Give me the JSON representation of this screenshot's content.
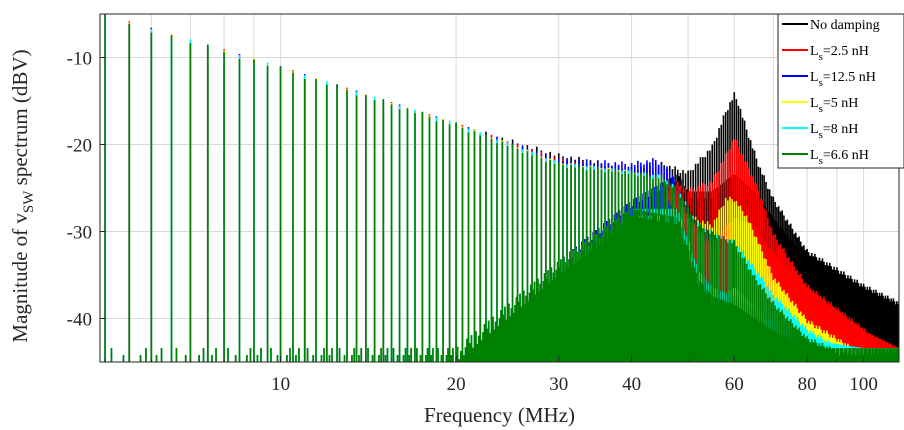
{
  "chart_data": {
    "type": "line",
    "title": "",
    "xlabel": "Frequency (MHz)",
    "ylabel": {
      "prefix": "Magnitude of v",
      "subscript": "SW",
      "suffix": " spectrum (dBV)"
    },
    "xscale": "log",
    "xlim": [
      4.9,
      115
    ],
    "ylim": [
      -45,
      -5
    ],
    "xticks": [
      10,
      20,
      30,
      40,
      60,
      80,
      100
    ],
    "xtick_labels": [
      "10",
      "20",
      "30",
      "40",
      "60",
      "80",
      "100"
    ],
    "yticks": [
      -40,
      -30,
      -20,
      -10
    ],
    "ytick_labels": [
      "-40",
      "-30",
      "-20",
      "-10"
    ],
    "grid": true,
    "legend_position": "top-right",
    "fundamental_mhz": 0.5,
    "series": [
      {
        "name": "No damping",
        "label": "No damping",
        "color": "#000000",
        "envelope_x": [
          5,
          10,
          20,
          30,
          40,
          45,
          50,
          55,
          58,
          60,
          61,
          63,
          66,
          70,
          80,
          100,
          115
        ],
        "envelope_y": [
          -5,
          -11,
          -17.5,
          -21,
          -22.5,
          -22,
          -23,
          -20,
          -16,
          -14,
          -15,
          -18,
          -22,
          -26,
          -32,
          -36,
          -38
        ],
        "floor_x": [
          5,
          10,
          20,
          30,
          40,
          48,
          50,
          55,
          60,
          65,
          70,
          80,
          100,
          115
        ],
        "floor_y": [
          -45,
          -45,
          -45,
          -35,
          -28,
          -25,
          -27,
          -27,
          -25,
          -27,
          -30,
          -35,
          -39,
          -42
        ]
      },
      {
        "name": "Ls=2.5 nH",
        "label_main": "L",
        "label_sub": "s",
        "label_tail": "=2.5 nH",
        "color": "#ff0000",
        "envelope_x": [
          5,
          10,
          20,
          30,
          40,
          45,
          50,
          55,
          58,
          60,
          61,
          63,
          66,
          70,
          80,
          100,
          115
        ],
        "envelope_y": [
          -5,
          -11,
          -17.5,
          -21.5,
          -23,
          -23,
          -25,
          -24,
          -21,
          -19,
          -20,
          -22,
          -25,
          -30,
          -36,
          -41,
          -45
        ],
        "floor_x": [
          5,
          10,
          20,
          30,
          40,
          48,
          50,
          55,
          60,
          65,
          70,
          80,
          100,
          115
        ],
        "floor_y": [
          -45,
          -45,
          -45,
          -35,
          -28,
          -26,
          -30,
          -33,
          -30,
          -31,
          -34,
          -38,
          -43,
          -45
        ]
      },
      {
        "name": "Ls=12.5 nH",
        "label_main": "L",
        "label_sub": "s",
        "label_tail": "=12.5 nH",
        "color": "#0000ff",
        "envelope_x": [
          5,
          10,
          20,
          30,
          40,
          44,
          47,
          50,
          52,
          55,
          58,
          60,
          65,
          70,
          80,
          100,
          115
        ],
        "envelope_y": [
          -5,
          -11,
          -17.5,
          -21.5,
          -22,
          -21.5,
          -23,
          -28,
          -31,
          -30,
          -31,
          -32,
          -36,
          -40,
          -43,
          -45,
          -45
        ],
        "floor_x": [
          5,
          10,
          20,
          30,
          40,
          45,
          50,
          52,
          55,
          60,
          70,
          80,
          100,
          115
        ],
        "floor_y": [
          -45,
          -45,
          -45,
          -35,
          -28,
          -26,
          -33,
          -37,
          -38,
          -40,
          -43,
          -45,
          -45,
          -45
        ]
      },
      {
        "name": "Ls=5 nH",
        "label_main": "L",
        "label_sub": "s",
        "label_tail": "=5 nH",
        "color": "#ffff00",
        "envelope_x": [
          5,
          10,
          20,
          30,
          40,
          45,
          50,
          55,
          58,
          60,
          63,
          66,
          70,
          80,
          100,
          115
        ],
        "envelope_y": [
          -5,
          -11,
          -17.5,
          -22,
          -23,
          -24,
          -28,
          -29,
          -26,
          -26,
          -28,
          -31,
          -35,
          -40,
          -44,
          -45
        ],
        "floor_x": [
          5,
          10,
          20,
          30,
          40,
          48,
          52,
          55,
          60,
          65,
          70,
          80,
          100,
          115
        ],
        "floor_y": [
          -45,
          -45,
          -45,
          -35,
          -29,
          -29,
          -37,
          -40,
          -38,
          -40,
          -43,
          -45,
          -45,
          -45
        ]
      },
      {
        "name": "Ls=8 nH",
        "label_main": "L",
        "label_sub": "s",
        "label_tail": "=8 nH",
        "color": "#00ffff",
        "envelope_x": [
          5,
          10,
          20,
          30,
          40,
          45,
          48,
          52,
          55,
          60,
          65,
          70,
          80,
          100,
          115
        ],
        "envelope_y": [
          -5,
          -11,
          -17.5,
          -22,
          -23,
          -23.5,
          -25,
          -29,
          -30,
          -31,
          -34,
          -37,
          -41,
          -45,
          -45
        ],
        "floor_x": [
          5,
          10,
          20,
          30,
          40,
          48,
          52,
          55,
          60,
          70,
          80,
          100,
          115
        ],
        "floor_y": [
          -45,
          -45,
          -45,
          -35,
          -29,
          -29,
          -36,
          -38,
          -39,
          -42,
          -44,
          -45,
          -45
        ]
      },
      {
        "name": "Ls=6.6 nH",
        "label_main": "L",
        "label_sub": "s",
        "label_tail": "=6.6 nH",
        "color": "#008000",
        "envelope_x": [
          5,
          10,
          20,
          30,
          40,
          45,
          48,
          52,
          55,
          60,
          65,
          70,
          80,
          100,
          115
        ],
        "envelope_y": [
          -5,
          -11,
          -17.5,
          -22,
          -23,
          -23.5,
          -25,
          -29,
          -30,
          -31,
          -35,
          -38,
          -42,
          -45,
          -45
        ],
        "floor_x": [
          5,
          10,
          20,
          30,
          40,
          48,
          52,
          55,
          60,
          70,
          80,
          100,
          115
        ],
        "floor_y": [
          -45,
          -45,
          -45,
          -35,
          -29,
          -30,
          -37,
          -39,
          -40,
          -43,
          -45,
          -45,
          -45
        ]
      }
    ]
  }
}
